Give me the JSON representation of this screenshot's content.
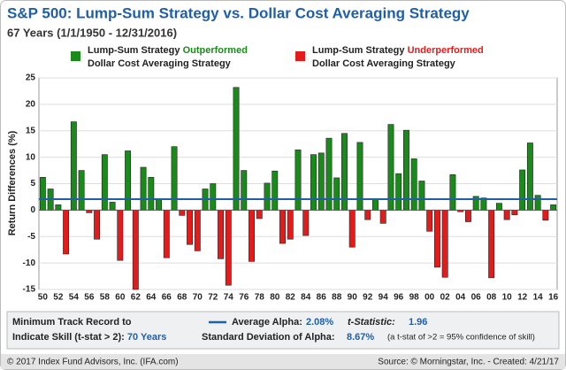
{
  "chart_data": {
    "type": "bar",
    "title": "S&P 500: Lump-Sum Strategy vs. Dollar Cost Averaging Strategy",
    "subtitle": "67 Years (1/1/1950 - 12/31/2016)",
    "y_label": "Return Differences (%)",
    "legend": [
      {
        "text": "Lump-Sum Strategy",
        "highlight": "Outperformed",
        "line2": "Dollar Cost Averaging Strategy",
        "color": "#1a8a1a"
      },
      {
        "text": "Lump-Sum Strategy",
        "highlight": "Underperformed",
        "line2": "Dollar Cost Averaging Strategy",
        "color": "#e41b1b"
      }
    ],
    "categories": [
      "50",
      null,
      "52",
      null,
      "54",
      null,
      "56",
      null,
      "58",
      null,
      "60",
      null,
      "62",
      null,
      "64",
      null,
      "66",
      null,
      "68",
      null,
      "70",
      null,
      "72",
      null,
      "74",
      null,
      "76",
      null,
      "78",
      null,
      "80",
      null,
      "82",
      null,
      "84",
      null,
      "86",
      null,
      "88",
      null,
      "90",
      null,
      "92",
      null,
      "94",
      null,
      "96",
      null,
      "98",
      null,
      "00",
      null,
      "02",
      null,
      "04",
      null,
      "06",
      null,
      "08",
      null,
      "10",
      null,
      "12",
      null,
      "14",
      null,
      "16"
    ],
    "values": [
      6.2,
      4,
      1,
      -8.3,
      16.7,
      7.5,
      -0.5,
      -5.5,
      10.5,
      1.5,
      -9.5,
      11.2,
      -15,
      8.1,
      6.2,
      2,
      -9,
      12,
      -1,
      -6.5,
      -7.7,
      4,
      5,
      -9.2,
      -14.2,
      23.2,
      7.5,
      -9.7,
      -1.6,
      5.1,
      7.4,
      -6.3,
      -5.5,
      11.4,
      -4.8,
      10.5,
      10.8,
      13.6,
      6.1,
      14.5,
      -7,
      12.8,
      -1.8,
      2,
      -2.5,
      16.2,
      6.9,
      15.1,
      9.7,
      5.5,
      -4,
      -10.8,
      -12.7,
      6.7,
      -0.3,
      -2.2,
      2.6,
      2.3,
      -12.8,
      1.3,
      -1.8,
      -0.9,
      7.6,
      12.7,
      2.8,
      -1.9,
      1
    ],
    "ylim": [
      -15,
      25
    ],
    "yticks": [
      -15,
      -10,
      -5,
      0,
      5,
      10,
      15,
      20,
      25
    ],
    "grid": true,
    "average_alpha": {
      "label": "Average Alpha:",
      "value": 2.08,
      "value_label": "2.08%",
      "color": "#1f5fa8"
    },
    "stats": {
      "track_record_label_1": "Minimum Track Record to",
      "track_record_label_2": "Indicate Skill (t-stat > 2):",
      "track_record_value": "70 Years",
      "t_stat_label": "t-Statistic:",
      "t_stat_value": "1.96",
      "std_label": "Standard Deviation of Alpha:",
      "std_value": "8.67%",
      "note": "(a t-stat of >2 = 95% confidence of skill)"
    },
    "footer_left": "© 2017 Index Fund Advisors, Inc. (IFA.com)",
    "footer_right": "Source: © Morningstar, Inc. - Created: 4/21/17"
  }
}
